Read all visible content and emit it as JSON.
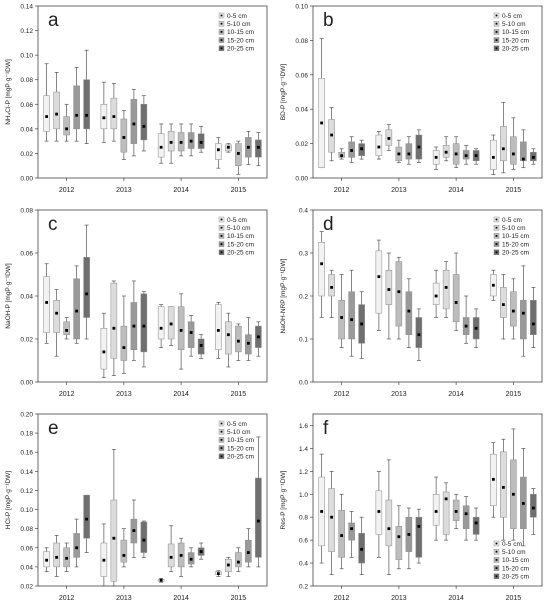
{
  "chart_data": [
    {
      "type": "box",
      "panel_letter": "a",
      "ylabel": "NH₄Cl-P [mgP·g⁻¹DW]",
      "ylim": [
        0,
        0.14
      ],
      "yticks": [
        "0.00",
        "0.02",
        "0.04",
        "0.06",
        "0.08",
        "0.10",
        "0.12",
        "0.14"
      ],
      "ytick_values": [
        0,
        0.02,
        0.04,
        0.06,
        0.08,
        0.1,
        0.12,
        0.14
      ],
      "categories": [
        "2012",
        "2013",
        "2014",
        "2015"
      ],
      "legend": [
        "0-5 cm",
        "5-10 cm",
        "10-15 cm",
        "15-20 cm",
        "20-25 cm"
      ],
      "legend_position": "top-right",
      "boxes": [
        [
          [
            0.03,
            0.038,
            0.05,
            0.067,
            0.093
          ],
          [
            0.03,
            0.04,
            0.052,
            0.07,
            0.086
          ],
          [
            0.03,
            0.035,
            0.04,
            0.05,
            0.06
          ],
          [
            0.03,
            0.04,
            0.051,
            0.075,
            0.09
          ],
          [
            0.028,
            0.04,
            0.051,
            0.08,
            0.104
          ]
        ],
        [
          [
            0.029,
            0.04,
            0.049,
            0.06,
            0.078
          ],
          [
            0.03,
            0.04,
            0.05,
            0.065,
            0.077
          ],
          [
            0.015,
            0.021,
            0.033,
            0.048,
            0.055
          ],
          [
            0.018,
            0.028,
            0.044,
            0.064,
            0.072
          ],
          [
            0.022,
            0.031,
            0.042,
            0.06,
            0.067
          ]
        ],
        [
          [
            0.012,
            0.017,
            0.025,
            0.036,
            0.044
          ],
          [
            0.012,
            0.022,
            0.029,
            0.038,
            0.044
          ],
          [
            0.018,
            0.022,
            0.029,
            0.037,
            0.044
          ],
          [
            0.018,
            0.024,
            0.03,
            0.037,
            0.044
          ],
          [
            0.021,
            0.024,
            0.029,
            0.036,
            0.042
          ]
        ],
        [
          [
            0.008,
            0.015,
            0.023,
            0.028,
            0.033
          ],
          [
            0.021,
            0.022,
            0.025,
            0.027,
            0.028
          ],
          [
            0.003,
            0.01,
            0.02,
            0.028,
            0.03
          ],
          [
            0.011,
            0.017,
            0.025,
            0.033,
            0.038
          ],
          [
            0.01,
            0.017,
            0.025,
            0.031,
            0.037
          ]
        ]
      ]
    },
    {
      "type": "box",
      "panel_letter": "b",
      "ylabel": "BD-P [mgP·g⁻¹DW]",
      "ylim": [
        0,
        0.1
      ],
      "yticks": [
        "0.00",
        "0.02",
        "0.04",
        "0.06",
        "0.08",
        "0.10"
      ],
      "ytick_values": [
        0,
        0.02,
        0.04,
        0.06,
        0.08,
        0.1
      ],
      "categories": [
        "2012",
        "2013",
        "2014",
        "2015"
      ],
      "legend": [
        "0-5 cm",
        "5-10 cm",
        "10-15 cm",
        "15-20 cm",
        "20-25 cm"
      ],
      "legend_position": "top-right",
      "boxes": [
        [
          [
            0.006,
            0.006,
            0.032,
            0.058,
            0.081
          ],
          [
            0.01,
            0.015,
            0.025,
            0.034,
            0.041
          ],
          [
            0.011,
            0.012,
            0.013,
            0.015,
            0.017
          ],
          [
            0.009,
            0.012,
            0.016,
            0.021,
            0.024
          ],
          [
            0.011,
            0.013,
            0.017,
            0.02,
            0.022
          ]
        ],
        [
          [
            0.011,
            0.013,
            0.018,
            0.025,
            0.027
          ],
          [
            0.016,
            0.019,
            0.023,
            0.028,
            0.031
          ],
          [
            0.009,
            0.01,
            0.014,
            0.018,
            0.022
          ],
          [
            0.008,
            0.011,
            0.014,
            0.02,
            0.024
          ],
          [
            0.009,
            0.011,
            0.018,
            0.025,
            0.028
          ]
        ],
        [
          [
            0.005,
            0.008,
            0.012,
            0.016,
            0.018
          ],
          [
            0.01,
            0.012,
            0.015,
            0.019,
            0.024
          ],
          [
            0.006,
            0.008,
            0.014,
            0.02,
            0.024
          ],
          [
            0.008,
            0.011,
            0.013,
            0.016,
            0.019
          ],
          [
            0.008,
            0.01,
            0.013,
            0.016,
            0.017
          ]
        ],
        [
          [
            0.002,
            0.005,
            0.012,
            0.022,
            0.025
          ],
          [
            0.003,
            0.01,
            0.017,
            0.03,
            0.044
          ],
          [
            0.005,
            0.008,
            0.014,
            0.024,
            0.035
          ],
          [
            0.006,
            0.01,
            0.011,
            0.021,
            0.028
          ],
          [
            0.008,
            0.01,
            0.012,
            0.015,
            0.017
          ]
        ]
      ]
    },
    {
      "type": "box",
      "panel_letter": "c",
      "ylabel": "NaOH-P [mgP·g⁻¹DW]",
      "ylim": [
        0,
        0.08
      ],
      "yticks": [
        "0.00",
        "0.02",
        "0.04",
        "0.06",
        "0.08"
      ],
      "ytick_values": [
        0,
        0.02,
        0.04,
        0.06,
        0.08
      ],
      "categories": [
        "2012",
        "2013",
        "2014",
        "2015"
      ],
      "legend": [
        "0-5 cm",
        "5-10 cm",
        "10-15 cm",
        "15-20 cm",
        "20-25 cm"
      ],
      "legend_position": "top-right",
      "boxes": [
        [
          [
            0.018,
            0.023,
            0.037,
            0.049,
            0.055
          ],
          [
            0.012,
            0.023,
            0.032,
            0.038,
            0.043
          ],
          [
            0.02,
            0.022,
            0.024,
            0.028,
            0.03
          ],
          [
            0.018,
            0.02,
            0.033,
            0.048,
            0.054
          ],
          [
            0.02,
            0.03,
            0.041,
            0.058,
            0.073
          ]
        ],
        [
          [
            0.002,
            0.006,
            0.014,
            0.025,
            0.032
          ],
          [
            0.003,
            0.011,
            0.025,
            0.046,
            0.047
          ],
          [
            0.004,
            0.01,
            0.016,
            0.026,
            0.04
          ],
          [
            0.01,
            0.015,
            0.026,
            0.037,
            0.047
          ],
          [
            0.007,
            0.014,
            0.026,
            0.041,
            0.042
          ]
        ],
        [
          [
            0.016,
            0.02,
            0.025,
            0.035,
            0.036
          ],
          [
            0.017,
            0.02,
            0.027,
            0.035,
            0.035
          ],
          [
            0.006,
            0.015,
            0.024,
            0.035,
            0.041
          ],
          [
            0.012,
            0.016,
            0.023,
            0.028,
            0.031
          ],
          [
            0.011,
            0.013,
            0.017,
            0.02,
            0.022
          ]
        ],
        [
          [
            0.011,
            0.015,
            0.024,
            0.036,
            0.037
          ],
          [
            0.007,
            0.013,
            0.022,
            0.028,
            0.032
          ],
          [
            0.01,
            0.014,
            0.019,
            0.026,
            0.027
          ],
          [
            0.01,
            0.013,
            0.018,
            0.022,
            0.03
          ],
          [
            0.012,
            0.016,
            0.021,
            0.026,
            0.028
          ]
        ]
      ]
    },
    {
      "type": "box",
      "panel_letter": "d",
      "ylabel": "NaOH-NRP [mgP·g⁻¹DW]",
      "ylim": [
        0,
        0.4
      ],
      "yticks": [
        "0.0",
        "0.1",
        "0.2",
        "0.3",
        "0.4"
      ],
      "ytick_values": [
        0,
        0.1,
        0.2,
        0.3,
        0.4
      ],
      "categories": [
        "2012",
        "2013",
        "2014",
        "2015"
      ],
      "legend": [
        "0-5 cm",
        "5-10 cm",
        "10-15 cm",
        "15-20 cm",
        "20-25 cm"
      ],
      "legend_position": "top-right",
      "boxes": [
        [
          [
            0.15,
            0.2,
            0.275,
            0.325,
            0.35
          ],
          [
            0.15,
            0.2,
            0.22,
            0.25,
            0.26
          ],
          [
            0.08,
            0.1,
            0.15,
            0.19,
            0.25
          ],
          [
            0.06,
            0.1,
            0.145,
            0.21,
            0.26
          ],
          [
            0.055,
            0.09,
            0.135,
            0.18,
            0.21
          ]
        ],
        [
          [
            0.12,
            0.16,
            0.245,
            0.305,
            0.33
          ],
          [
            0.1,
            0.18,
            0.215,
            0.26,
            0.3
          ],
          [
            0.1,
            0.13,
            0.21,
            0.28,
            0.29
          ],
          [
            0.08,
            0.11,
            0.165,
            0.21,
            0.24
          ],
          [
            0.05,
            0.08,
            0.11,
            0.15,
            0.17
          ]
        ],
        [
          [
            0.15,
            0.18,
            0.2,
            0.23,
            0.26
          ],
          [
            0.15,
            0.17,
            0.22,
            0.26,
            0.28
          ],
          [
            0.12,
            0.14,
            0.185,
            0.25,
            0.3
          ],
          [
            0.09,
            0.11,
            0.13,
            0.15,
            0.2
          ],
          [
            0.08,
            0.1,
            0.125,
            0.15,
            0.17
          ]
        ],
        [
          [
            0.19,
            0.2,
            0.225,
            0.25,
            0.26
          ],
          [
            0.1,
            0.15,
            0.18,
            0.22,
            0.25
          ],
          [
            0.1,
            0.13,
            0.165,
            0.21,
            0.24
          ],
          [
            0.06,
            0.1,
            0.16,
            0.19,
            0.27
          ],
          [
            0.08,
            0.11,
            0.135,
            0.19,
            0.22
          ]
        ]
      ]
    },
    {
      "type": "box",
      "panel_letter": "e",
      "ylabel": "HCl-P [mgP·g⁻¹DW]",
      "ylim": [
        0.02,
        0.2
      ],
      "yticks": [
        "0.02",
        "0.04",
        "0.06",
        "0.08",
        "0.10",
        "0.12",
        "0.14",
        "0.16",
        "0.18",
        "0.20"
      ],
      "ytick_values": [
        0.02,
        0.04,
        0.06,
        0.08,
        0.1,
        0.12,
        0.14,
        0.16,
        0.18,
        0.2
      ],
      "categories": [
        "2012",
        "2013",
        "2014",
        "2015"
      ],
      "legend": [
        "0-5 cm",
        "5-10 cm",
        "10-15 cm",
        "15-20 cm",
        "20-25 cm"
      ],
      "legend_position": "top-right",
      "boxes": [
        [
          [
            0.035,
            0.04,
            0.047,
            0.056,
            0.06
          ],
          [
            0.03,
            0.04,
            0.05,
            0.065,
            0.073
          ],
          [
            0.035,
            0.04,
            0.049,
            0.06,
            0.065
          ],
          [
            0.04,
            0.05,
            0.06,
            0.075,
            0.09
          ],
          [
            0.055,
            0.07,
            0.09,
            0.115,
            0.115
          ]
        ],
        [
          [
            0.02,
            0.03,
            0.047,
            0.065,
            0.085
          ],
          [
            0.02,
            0.025,
            0.07,
            0.11,
            0.163
          ],
          [
            0.04,
            0.045,
            0.052,
            0.068,
            0.08
          ],
          [
            0.05,
            0.065,
            0.078,
            0.09,
            0.11
          ],
          [
            0.05,
            0.055,
            0.068,
            0.087,
            0.088
          ]
        ],
        [
          [
            0.024,
            0.025,
            0.026,
            0.027,
            0.028
          ],
          [
            0.035,
            0.04,
            0.05,
            0.064,
            0.083
          ],
          [
            0.03,
            0.04,
            0.052,
            0.065,
            0.07
          ],
          [
            0.04,
            0.043,
            0.048,
            0.055,
            0.06
          ],
          [
            0.048,
            0.052,
            0.056,
            0.06,
            0.065
          ]
        ],
        [
          [
            0.03,
            0.032,
            0.033,
            0.035,
            0.036
          ],
          [
            0.03,
            0.035,
            0.042,
            0.048,
            0.05
          ],
          [
            0.035,
            0.04,
            0.045,
            0.055,
            0.06
          ],
          [
            0.04,
            0.045,
            0.055,
            0.068,
            0.08
          ],
          [
            0.04,
            0.05,
            0.088,
            0.133,
            0.176
          ]
        ]
      ]
    },
    {
      "type": "box",
      "panel_letter": "f",
      "ylabel": "Res-P [mgP·g⁻¹DW]",
      "ylim": [
        0.2,
        1.7
      ],
      "yticks": [
        "0.2",
        "0.4",
        "0.6",
        "0.8",
        "1.0",
        "1.2",
        "1.4",
        "1.6"
      ],
      "ytick_values": [
        0.2,
        0.4,
        0.6,
        0.8,
        1.0,
        1.2,
        1.4,
        1.6
      ],
      "categories": [
        "2012",
        "2013",
        "2014",
        "2015"
      ],
      "legend": [
        "0-5 cm",
        "5-10 cm",
        "10-15 cm",
        "15-20 cm",
        "20-25 cm"
      ],
      "legend_position": "bottom-right",
      "boxes": [
        [
          [
            0.4,
            0.55,
            0.85,
            1.15,
            1.35
          ],
          [
            0.3,
            0.5,
            0.8,
            1.05,
            1.2
          ],
          [
            0.35,
            0.45,
            0.64,
            0.86,
            1.0
          ],
          [
            0.45,
            0.6,
            0.7,
            0.75,
            0.85
          ],
          [
            0.3,
            0.4,
            0.52,
            0.66,
            0.8
          ]
        ],
        [
          [
            0.45,
            0.65,
            0.85,
            1.03,
            1.2
          ],
          [
            0.3,
            0.55,
            0.7,
            0.95,
            1.3
          ],
          [
            0.35,
            0.43,
            0.63,
            0.72,
            0.9
          ],
          [
            0.35,
            0.5,
            0.65,
            0.8,
            0.88
          ],
          [
            0.4,
            0.45,
            0.72,
            0.8,
            0.87
          ]
        ],
        [
          [
            0.6,
            0.73,
            0.85,
            1.0,
            1.15
          ],
          [
            0.6,
            0.65,
            0.96,
            1.02,
            1.1
          ],
          [
            0.7,
            0.77,
            0.85,
            0.95,
            1.0
          ],
          [
            0.6,
            0.7,
            0.83,
            0.9,
            0.98
          ],
          [
            0.6,
            0.65,
            0.75,
            0.8,
            0.88
          ]
        ],
        [
          [
            0.8,
            0.9,
            1.13,
            1.35,
            1.45
          ],
          [
            0.6,
            0.8,
            1.06,
            1.37,
            1.48
          ],
          [
            0.6,
            0.7,
            1.0,
            1.3,
            1.57
          ],
          [
            0.55,
            0.7,
            0.92,
            1.15,
            1.4
          ],
          [
            0.65,
            0.8,
            0.88,
            1.0,
            1.05
          ]
        ]
      ]
    }
  ]
}
